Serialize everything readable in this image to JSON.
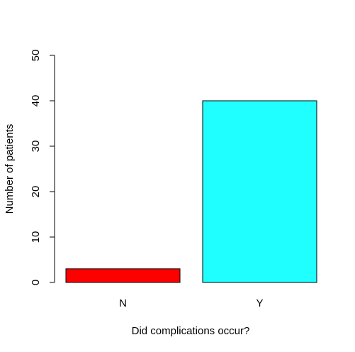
{
  "chart_data": {
    "type": "bar",
    "title": "",
    "xlabel": "Did complications occur?",
    "ylabel": "Number of patients",
    "categories": [
      "N",
      "Y"
    ],
    "values": [
      3,
      40
    ],
    "colors": [
      "#ff0000",
      "#1fffff"
    ],
    "ylim": [
      0,
      50
    ],
    "yticks": [
      0,
      10,
      20,
      30,
      40,
      50
    ],
    "grid": false,
    "legend": "none"
  }
}
